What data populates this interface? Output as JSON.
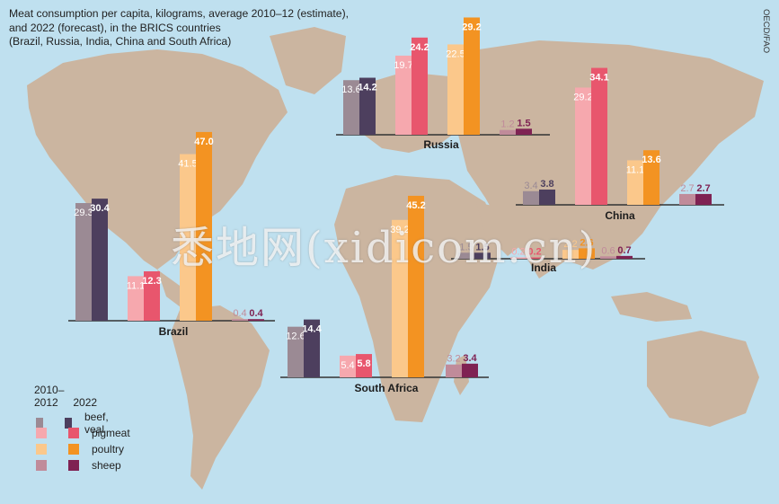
{
  "chart_data": {
    "type": "bar",
    "title_lines": [
      "Meat consumption per capita, kilograms, average 2010–12 (estimate),",
      "and 2022 (forecast), in the BRICS countries",
      "(Brazil, Russia, India, China and South Africa)"
    ],
    "source": "OECD/FAO",
    "periods": [
      "2010–2012",
      "2022"
    ],
    "categories": [
      "beef, veal",
      "pigmeat",
      "poultry",
      "sheep"
    ],
    "colors": {
      "beef, veal": [
        "#9b8a94",
        "#4d3f5e"
      ],
      "pigmeat": [
        "#f6a8ae",
        "#e8566d"
      ],
      "poultry": [
        "#fbc88b",
        "#f39322"
      ],
      "sheep": [
        "#c08b9a",
        "#7f2253"
      ]
    },
    "legend": {
      "period1_lines": [
        "2010–",
        "2012"
      ],
      "period2": "2022"
    },
    "countries": [
      {
        "name": "Russia",
        "values": {
          "beef, veal": [
            13.6,
            14.2
          ],
          "pigmeat": [
            19.7,
            24.2
          ],
          "poultry": [
            22.5,
            29.2
          ],
          "sheep": [
            1.2,
            1.5
          ]
        }
      },
      {
        "name": "China",
        "values": {
          "beef, veal": [
            3.4,
            3.8
          ],
          "pigmeat": [
            29.2,
            34.1
          ],
          "poultry": [
            11.1,
            13.6
          ],
          "sheep": [
            2.7,
            2.7
          ]
        }
      },
      {
        "name": "Brazil",
        "values": {
          "beef, veal": [
            29.3,
            30.4
          ],
          "pigmeat": [
            11.1,
            12.3
          ],
          "poultry": [
            41.5,
            47.0
          ],
          "sheep": [
            0.4,
            0.4
          ]
        }
      },
      {
        "name": "India",
        "values": {
          "beef, veal": [
            1.5,
            1.5
          ],
          "pigmeat": [
            0.2,
            0.2
          ],
          "poultry": [
            2.2,
            2.6
          ],
          "sheep": [
            0.6,
            0.7
          ]
        }
      },
      {
        "name": "South Africa",
        "values": {
          "beef, veal": [
            12.6,
            14.4
          ],
          "pigmeat": [
            5.4,
            5.8
          ],
          "poultry": [
            39.2,
            45.2
          ],
          "sheep": [
            3.2,
            3.4
          ]
        }
      }
    ]
  }
}
